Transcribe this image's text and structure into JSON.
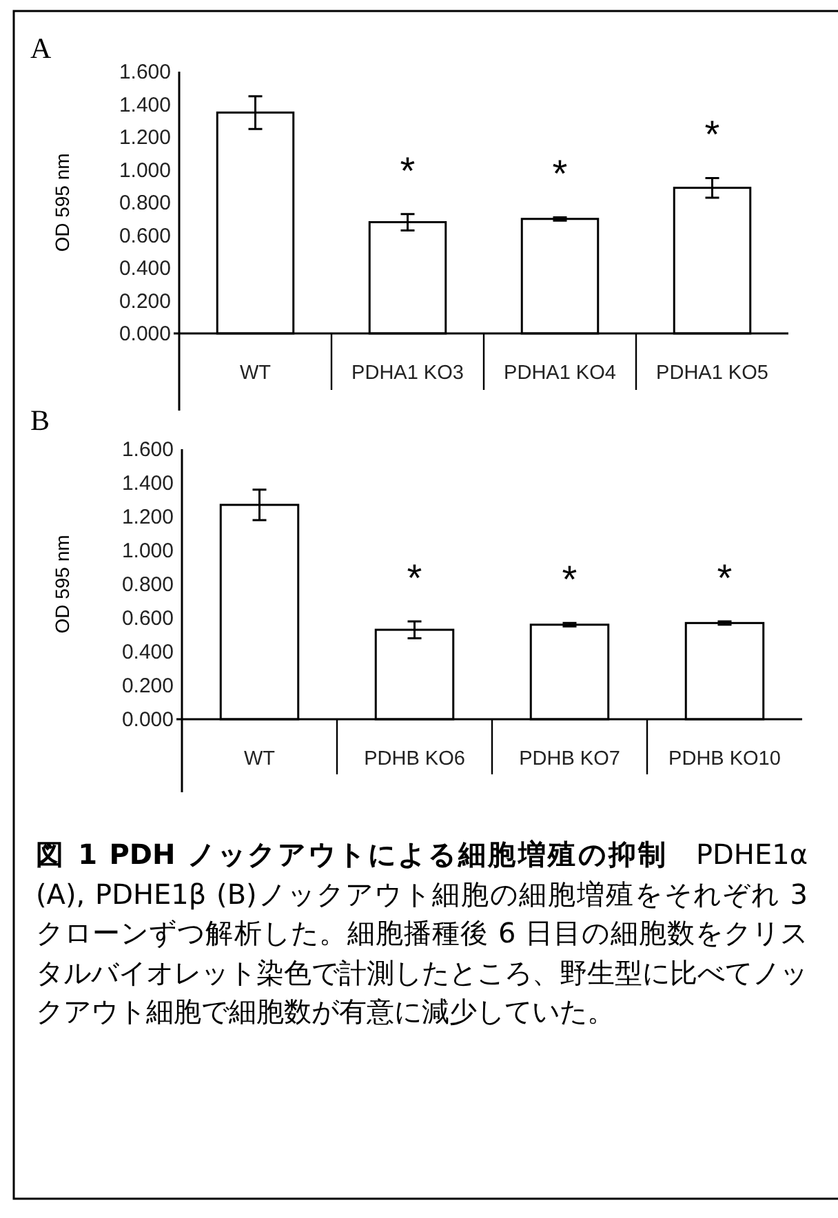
{
  "chart_data": [
    {
      "type": "bar",
      "title": "A",
      "ylabel": "OD 595 nm",
      "categories": [
        "WT",
        "PDHA1 KO3",
        "PDHA1 KO4",
        "PDHA1 KO5"
      ],
      "values": [
        1.35,
        0.68,
        0.7,
        0.89
      ],
      "errors": [
        0.1,
        0.05,
        0.01,
        0.06
      ],
      "color": "#ffffff",
      "ylim": [
        0,
        1.6
      ],
      "yticks": [
        {
          "value": 0,
          "label": "0.000"
        },
        {
          "value": 0.2,
          "label": "0.200"
        },
        {
          "value": 0.4,
          "label": "0.400"
        },
        {
          "value": 0.6,
          "label": "0.600"
        },
        {
          "value": 0.8,
          "label": "0.800"
        },
        {
          "value": 1.0,
          "label": "1.000"
        },
        {
          "value": 1.2,
          "label": "1.200"
        },
        {
          "value": 1.4,
          "label": "1.400"
        },
        {
          "value": 1.6,
          "label": "1.600"
        }
      ],
      "annotations": [
        "*",
        "*",
        "*"
      ]
    },
    {
      "type": "bar",
      "title": "B",
      "ylabel": "OD 595 nm",
      "categories": [
        "WT",
        "PDHB KO6",
        "PDHB KO7",
        "PDHB KO10"
      ],
      "values": [
        1.27,
        0.53,
        0.56,
        0.57
      ],
      "errors": [
        0.09,
        0.05,
        0.01,
        0.01
      ],
      "color": "#ffffff",
      "ylim": [
        0,
        1.6
      ],
      "yticks": [
        {
          "value": 0,
          "label": "0.000"
        },
        {
          "value": 0.2,
          "label": "0.200"
        },
        {
          "value": 0.4,
          "label": "0.400"
        },
        {
          "value": 0.6,
          "label": "0.600"
        },
        {
          "value": 0.8,
          "label": "0.800"
        },
        {
          "value": 1.0,
          "label": "1.000"
        },
        {
          "value": 1.2,
          "label": "1.200"
        },
        {
          "value": 1.4,
          "label": "1.400"
        },
        {
          "value": 1.6,
          "label": "1.600"
        }
      ],
      "annotations": [
        "*",
        "*",
        "*"
      ]
    },
    {
      "type": "other",
      "title": "図 1 PDH ノックアウトによる細胞増殖の抑制",
      "annotations": [
        "PDHE1α (A), PDHE1β (B)ノックアウト細胞の細胞増殖をそれぞれ 3 クローンずつ解析した。細胞播種後 6 日目の細胞数をクリスタルバイオレット染色で計測したところ、野生型に比べてノックアウト細胞で細胞数が有意に減少していた。"
      ]
    }
  ]
}
